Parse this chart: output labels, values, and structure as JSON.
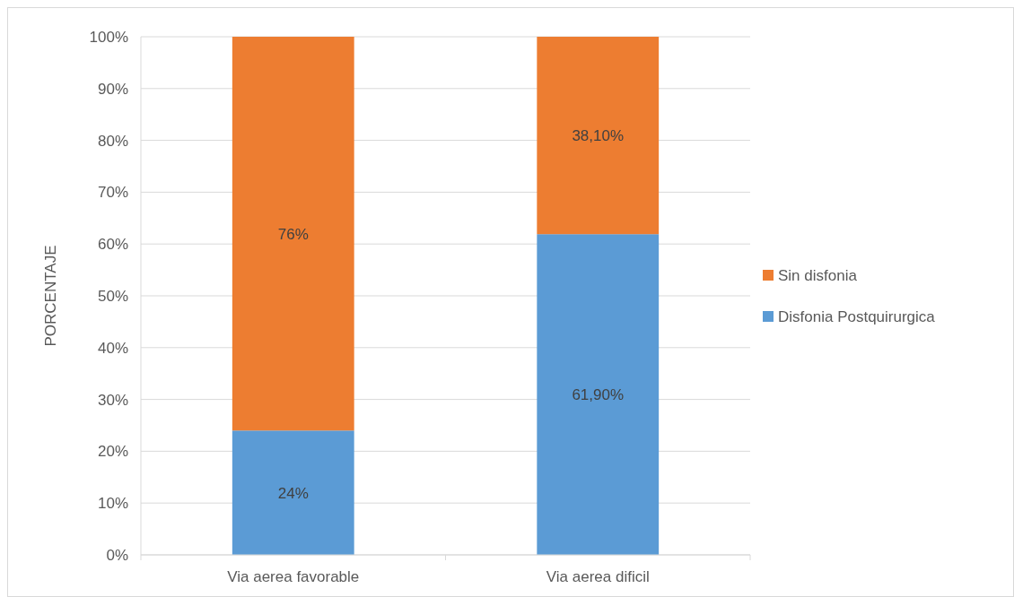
{
  "chart_data": {
    "type": "bar",
    "stacked": true,
    "ylabel": "PORCENTAJE",
    "categories": [
      "Via aerea favorable",
      "Via aerea dificil"
    ],
    "series": [
      {
        "name": "Disfonia Postquirurgica",
        "color": "#5b9bd5",
        "values": [
          24,
          61.9
        ],
        "value_labels": [
          "24%",
          "61,90%"
        ]
      },
      {
        "name": "Sin disfonia",
        "color": "#ed7d31",
        "values": [
          76,
          38.1
        ],
        "value_labels": [
          "76%",
          "38,10%"
        ]
      }
    ],
    "ylim": [
      0,
      100
    ],
    "yticks": [
      {
        "value": 0,
        "label": "0%"
      },
      {
        "value": 10,
        "label": "10%"
      },
      {
        "value": 20,
        "label": "20%"
      },
      {
        "value": 30,
        "label": "30%"
      },
      {
        "value": 40,
        "label": "40%"
      },
      {
        "value": 50,
        "label": "50%"
      },
      {
        "value": 60,
        "label": "60%"
      },
      {
        "value": 70,
        "label": "70%"
      },
      {
        "value": 80,
        "label": "80%"
      },
      {
        "value": 90,
        "label": "90%"
      },
      {
        "value": 100,
        "label": "100%"
      }
    ],
    "grid": "y",
    "legend": "right"
  }
}
